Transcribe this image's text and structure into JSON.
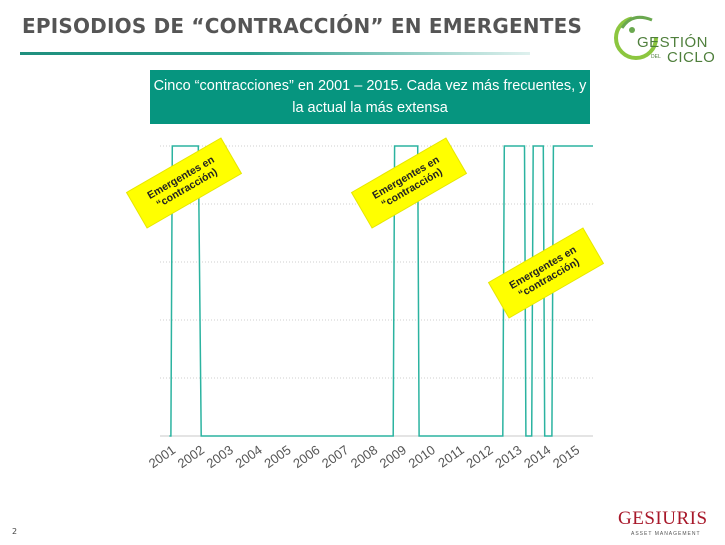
{
  "header": {
    "title": "EPISODIOS DE “CONTRACCIÓN” EN EMERGENTES",
    "logo_line1": "GESTIÓN",
    "logo_del": "DEL",
    "logo_line2": "CICLO"
  },
  "subtitle": "Cinco “contracciones” en 2001 – 2015. Cada vez más frecuentes, y la actual la más extensa",
  "annotations": [
    "Emergentes en “contracción)",
    "Emergentes en “contracción)",
    "Emergentes en “contracción)"
  ],
  "footer": {
    "page_number": "2",
    "brand": "GESIURIS",
    "brand_sub": "ASSET MANAGEMENT"
  },
  "colors": {
    "accent": "#06957f",
    "line": "#2bb3a0",
    "annotation": "#ffff00",
    "brand": "#a8182a"
  },
  "chart_data": {
    "type": "line",
    "title": "",
    "xlabel": "",
    "ylabel": "",
    "categories": [
      "2001",
      "2002",
      "2003",
      "2004",
      "2005",
      "2006",
      "2007",
      "2008",
      "2009",
      "2010",
      "2011",
      "2012",
      "2013",
      "2014",
      "2015"
    ],
    "xlim": [
      2001,
      2015.9
    ],
    "ylim": [
      0,
      1
    ],
    "grid": true,
    "series": [
      {
        "x": [
          2001.0,
          2001.05,
          2001.1,
          2001.15,
          2002.0,
          2002.1,
          2002.15,
          2008.75,
          2008.8,
          2009.0,
          2009.6,
          2009.65,
          2012.55,
          2012.6,
          2013.3,
          2013.35,
          2013.55,
          2013.6,
          2013.95,
          2014.0,
          2014.25,
          2014.3,
          2015.9
        ],
        "y": [
          0,
          0,
          1,
          1,
          1,
          0,
          0,
          0,
          1,
          1,
          1,
          0,
          0,
          1,
          1,
          0,
          0,
          1,
          1,
          0,
          0,
          1,
          1
        ]
      }
    ]
  }
}
